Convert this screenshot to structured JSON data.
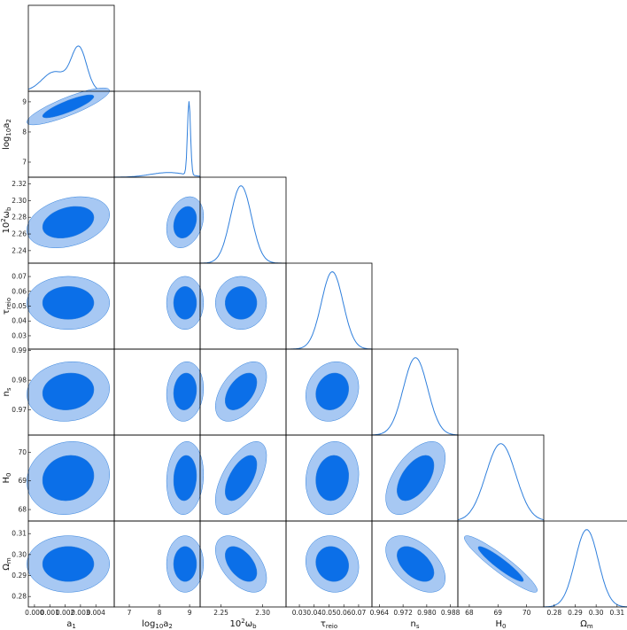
{
  "chart_data": {
    "type": "triangle",
    "colors": {
      "inner": "#0b6fe8",
      "outer": "#a7c8f3",
      "line": "#2f7fdc"
    },
    "params": [
      {
        "name": "a1",
        "label": "a",
        "sub": "1",
        "sup": "",
        "range": [
          -0.0004,
          0.0052
        ],
        "ticks": [
          "0.000",
          "0.001",
          "0.002",
          "0.003",
          "0.004"
        ],
        "tick_values": [
          0,
          0.001,
          0.002,
          0.003,
          0.004
        ],
        "mean": 0.0022,
        "sd": 0.0011
      },
      {
        "name": "log10a2",
        "label": "log",
        "sub": "10",
        "suffix": "a",
        "sub2": "2",
        "range": [
          6.5,
          9.35
        ],
        "ticks": [
          "7",
          "8",
          "9"
        ],
        "tick_values": [
          7,
          8,
          9
        ],
        "mean": 8.85,
        "sd": 0.25
      },
      {
        "name": "omega_b",
        "label": "10",
        "sup": "2",
        "suffix": "ω",
        "sub": "b",
        "range": [
          2.225,
          2.328
        ],
        "ticks": [
          "2.24",
          "2.26",
          "2.28",
          "2.30",
          "2.32"
        ],
        "tick_values": [
          2.24,
          2.26,
          2.28,
          2.3,
          2.32
        ],
        "ticks_x": [
          "2.25",
          "2.30"
        ],
        "tick_values_x": [
          2.25,
          2.3
        ],
        "mean": 2.274,
        "sd": 0.0125
      },
      {
        "name": "tau_reio",
        "label": "τ",
        "sub": "reio",
        "range": [
          0.021,
          0.079
        ],
        "ticks": [
          "0.03",
          "0.04",
          "0.05",
          "0.06",
          "0.07"
        ],
        "tick_values": [
          0.03,
          0.04,
          0.05,
          0.06,
          0.07
        ],
        "mean": 0.0522,
        "sd": 0.0073
      },
      {
        "name": "n_s",
        "label": "n",
        "sub": "s",
        "range": [
          0.9615,
          0.9905
        ],
        "ticks": [
          "0.97",
          "0.98",
          "0.99"
        ],
        "tick_values": [
          0.97,
          0.98,
          0.99
        ],
        "ticks_x": [
          "0.964",
          "0.972",
          "0.980",
          "0.988"
        ],
        "tick_values_x": [
          0.964,
          0.972,
          0.98,
          0.988
        ],
        "mean": 0.9762,
        "sd": 0.0041
      },
      {
        "name": "H0",
        "label": "H",
        "sub": "0",
        "range": [
          67.6,
          70.6
        ],
        "ticks": [
          "68",
          "69",
          "70"
        ],
        "tick_values": [
          68,
          69,
          70
        ],
        "mean": 69.1,
        "sd": 0.52
      },
      {
        "name": "Omega_m",
        "label": "Ω",
        "sub": "m",
        "range": [
          0.275,
          0.316
        ],
        "ticks": [
          "0.28",
          "0.29",
          "0.30",
          "0.31"
        ],
        "tick_values": [
          0.28,
          0.29,
          0.3,
          0.31
        ],
        "mean": 0.2955,
        "sd": 0.0055
      }
    ],
    "correlations": {
      "1-0": 0.85,
      "2-0": 0.3,
      "2-1": 0.25,
      "3-0": 0.0,
      "3-1": 0.0,
      "3-2": 0.0,
      "4-0": 0.1,
      "4-1": 0.1,
      "4-2": 0.5,
      "4-3": 0.15,
      "5-0": 0.1,
      "5-1": 0.1,
      "5-2": 0.6,
      "5-3": 0.1,
      "5-4": 0.55,
      "6-0": 0.0,
      "6-1": 0.0,
      "6-2": -0.5,
      "6-3": -0.1,
      "6-4": -0.5,
      "6-5": -0.93
    }
  }
}
